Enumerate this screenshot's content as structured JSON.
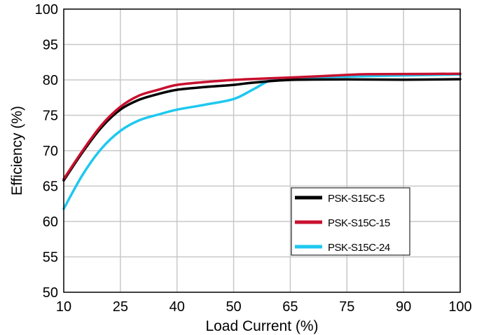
{
  "chart_data": {
    "type": "line",
    "title": "",
    "xlabel": "Load Current (%)",
    "ylabel": "Efficiency (%)",
    "x_ticks": [
      "10",
      "25",
      "40",
      "50",
      "65",
      "75",
      "90",
      "100"
    ],
    "y_ticks": [
      "50",
      "55",
      "60",
      "65",
      "70",
      "75",
      "80",
      "95",
      "100"
    ],
    "ylim": [
      50,
      100
    ],
    "grid": true,
    "legend_position": "bottom-right",
    "series": [
      {
        "name": "PSK-S15C-5",
        "color": "#000000",
        "x": [
          10,
          15,
          20,
          25,
          30,
          35,
          40,
          45,
          50,
          55,
          65,
          75,
          90,
          100
        ],
        "y": [
          65.8,
          69.8,
          73.3,
          75.8,
          77.2,
          78.0,
          78.6,
          79.0,
          79.3,
          79.6,
          80.0,
          80.2,
          80.1,
          80.3
        ]
      },
      {
        "name": "PSK-S15C-15",
        "color": "#c8102e",
        "x": [
          10,
          15,
          20,
          25,
          30,
          35,
          40,
          45,
          50,
          55,
          65,
          75,
          80,
          90,
          100
        ],
        "y": [
          66.0,
          70.0,
          73.6,
          76.2,
          77.8,
          78.6,
          79.3,
          79.7,
          80.0,
          80.4,
          81.0,
          82.1,
          82.4,
          82.5,
          82.6
        ]
      },
      {
        "name": "PSK-S15C-24",
        "color": "#1ec8f0",
        "x": [
          10,
          15,
          20,
          25,
          30,
          35,
          40,
          45,
          50,
          55,
          60,
          65,
          75,
          90,
          100
        ],
        "y": [
          61.8,
          66.6,
          70.3,
          72.8,
          74.3,
          75.1,
          75.8,
          76.5,
          77.3,
          78.6,
          80.0,
          80.8,
          81.4,
          81.9,
          82.3
        ]
      }
    ]
  }
}
